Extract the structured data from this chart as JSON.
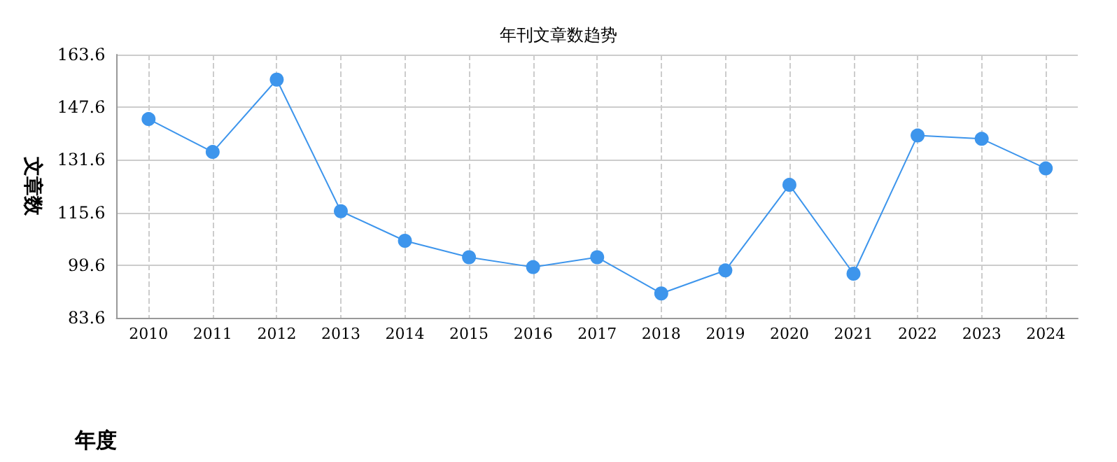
{
  "chart_data": {
    "type": "line",
    "title": "年刊文章数趋势",
    "xlabel": "年度",
    "ylabel": "文章数",
    "categories": [
      "2010",
      "2011",
      "2012",
      "2013",
      "2014",
      "2015",
      "2016",
      "2017",
      "2018",
      "2019",
      "2020",
      "2021",
      "2022",
      "2023",
      "2024"
    ],
    "series": [
      {
        "color": "#3d95ec",
        "values": [
          144,
          134,
          156,
          116,
          107,
          102,
          99,
          102,
          91,
          98,
          124,
          97,
          139,
          138,
          129
        ]
      }
    ],
    "ylim": [
      83.6,
      163.6
    ],
    "yticks": [
      83.6,
      99.6,
      115.6,
      131.6,
      147.6,
      163.6
    ],
    "grid": true,
    "marker": "circle",
    "line_style": "solid"
  }
}
